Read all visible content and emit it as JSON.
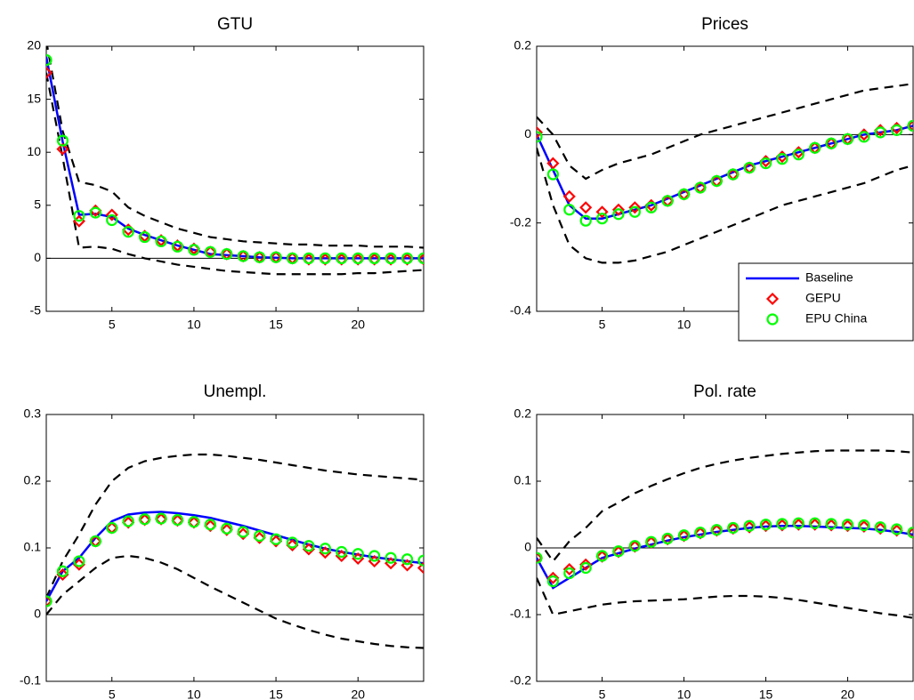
{
  "chart_data": [
    {
      "type": "line",
      "title": "GTU",
      "x": [
        1,
        2,
        3,
        4,
        5,
        6,
        7,
        8,
        9,
        10,
        11,
        12,
        13,
        14,
        15,
        16,
        17,
        18,
        19,
        20,
        21,
        22,
        23,
        24
      ],
      "xlim": [
        1,
        24
      ],
      "xticks": [
        5,
        10,
        15,
        20
      ],
      "ylim": [
        -5,
        20
      ],
      "yticks": [
        -5,
        0,
        5,
        10,
        15,
        20
      ],
      "series": [
        {
          "color": "#000000",
          "line": "dashed",
          "values": [
            20.5,
            12,
            7.2,
            6.9,
            6.3,
            4.8,
            4.0,
            3.4,
            2.8,
            2.4,
            2.0,
            1.8,
            1.6,
            1.5,
            1.4,
            1.3,
            1.3,
            1.2,
            1.2,
            1.2,
            1.1,
            1.1,
            1.1,
            1.0
          ]
        },
        {
          "color": "#000000",
          "line": "dashed",
          "values": [
            17.5,
            9.5,
            1.0,
            1.1,
            0.9,
            0.4,
            0,
            -0.3,
            -0.6,
            -0.8,
            -1.0,
            -1.2,
            -1.3,
            -1.4,
            -1.5,
            -1.5,
            -1.5,
            -1.5,
            -1.5,
            -1.4,
            -1.4,
            -1.3,
            -1.2,
            -1.1
          ]
        },
        {
          "name": "Baseline",
          "color": "#0000ff",
          "line": "solid",
          "values": [
            19,
            11,
            4.1,
            4.2,
            3.9,
            2.8,
            2.2,
            1.7,
            1.2,
            0.8,
            0.4,
            0.3,
            0.2,
            0.1,
            0.05,
            0,
            0,
            0,
            0,
            0,
            0,
            0,
            0,
            0
          ]
        },
        {
          "name": "GEPU",
          "color": "#ff0000",
          "marker": "diamond",
          "values": [
            17.5,
            10.3,
            3.5,
            4.5,
            4.1,
            2.7,
            2.1,
            1.7,
            1.2,
            0.9,
            0.6,
            0.4,
            0.2,
            0.1,
            0.1,
            0,
            -0.1,
            -0.1,
            -0.1,
            -0.1,
            -0.1,
            -0.1,
            -0.1,
            -0.1
          ]
        },
        {
          "name": "EPU China",
          "color": "#00ff00",
          "marker": "circle",
          "values": [
            18.7,
            11.1,
            4.0,
            4.3,
            3.6,
            2.5,
            2.0,
            1.6,
            1.1,
            0.8,
            0.6,
            0.4,
            0.2,
            0.1,
            0.1,
            0,
            0,
            0,
            0,
            0,
            0,
            0,
            0,
            0
          ]
        }
      ]
    },
    {
      "type": "line",
      "title": "Prices",
      "legend": "lower right",
      "x": [
        1,
        2,
        3,
        4,
        5,
        6,
        7,
        8,
        9,
        10,
        11,
        12,
        13,
        14,
        15,
        16,
        17,
        18,
        19,
        20,
        21,
        22,
        23,
        24
      ],
      "xlim": [
        1,
        24
      ],
      "xticks": [
        5,
        10,
        15,
        20
      ],
      "ylim": [
        -0.4,
        0.2
      ],
      "yticks": [
        -0.4,
        -0.2,
        0,
        0.2
      ],
      "series": [
        {
          "color": "#000000",
          "line": "dashed",
          "values": [
            0.04,
            0.0,
            -0.07,
            -0.1,
            -0.08,
            -0.065,
            -0.055,
            -0.045,
            -0.03,
            -0.015,
            0,
            0.01,
            0.02,
            0.03,
            0.04,
            0.05,
            0.06,
            0.07,
            0.08,
            0.09,
            0.1,
            0.105,
            0.11,
            0.115
          ]
        },
        {
          "color": "#000000",
          "line": "dashed",
          "values": [
            -0.03,
            -0.16,
            -0.25,
            -0.28,
            -0.29,
            -0.29,
            -0.285,
            -0.275,
            -0.265,
            -0.25,
            -0.235,
            -0.22,
            -0.205,
            -0.19,
            -0.175,
            -0.16,
            -0.15,
            -0.14,
            -0.13,
            -0.12,
            -0.11,
            -0.095,
            -0.08,
            -0.07
          ]
        },
        {
          "name": "Baseline",
          "color": "#0000ff",
          "line": "solid",
          "values": [
            0,
            -0.08,
            -0.16,
            -0.19,
            -0.19,
            -0.18,
            -0.17,
            -0.16,
            -0.145,
            -0.13,
            -0.115,
            -0.1,
            -0.085,
            -0.07,
            -0.06,
            -0.05,
            -0.04,
            -0.03,
            -0.02,
            -0.01,
            0,
            0.005,
            0.01,
            0.02
          ]
        },
        {
          "name": "GEPU",
          "color": "#ff0000",
          "marker": "diamond",
          "values": [
            0.005,
            -0.065,
            -0.14,
            -0.165,
            -0.175,
            -0.17,
            -0.165,
            -0.16,
            -0.15,
            -0.135,
            -0.12,
            -0.105,
            -0.09,
            -0.075,
            -0.06,
            -0.05,
            -0.04,
            -0.03,
            -0.02,
            -0.01,
            0,
            0.01,
            0.015,
            0.02
          ]
        },
        {
          "name": "EPU China",
          "color": "#00ff00",
          "marker": "circle",
          "values": [
            -0.005,
            -0.09,
            -0.17,
            -0.195,
            -0.19,
            -0.18,
            -0.175,
            -0.165,
            -0.15,
            -0.135,
            -0.12,
            -0.105,
            -0.09,
            -0.075,
            -0.065,
            -0.055,
            -0.045,
            -0.03,
            -0.02,
            -0.01,
            -0.005,
            0.005,
            0.01,
            0.02
          ]
        }
      ]
    },
    {
      "type": "line",
      "title": "Unempl.",
      "x": [
        1,
        2,
        3,
        4,
        5,
        6,
        7,
        8,
        9,
        10,
        11,
        12,
        13,
        14,
        15,
        16,
        17,
        18,
        19,
        20,
        21,
        22,
        23,
        24
      ],
      "xlim": [
        1,
        24
      ],
      "xticks": [
        5,
        10,
        15,
        20
      ],
      "ylim": [
        -0.1,
        0.3
      ],
      "yticks": [
        -0.1,
        0,
        0.1,
        0.2,
        0.3
      ],
      "series": [
        {
          "color": "#000000",
          "line": "dashed",
          "values": [
            0.025,
            0.08,
            0.12,
            0.165,
            0.2,
            0.22,
            0.23,
            0.235,
            0.238,
            0.24,
            0.24,
            0.238,
            0.235,
            0.232,
            0.228,
            0.224,
            0.22,
            0.216,
            0.213,
            0.21,
            0.208,
            0.206,
            0.204,
            0.202
          ]
        },
        {
          "color": "#000000",
          "line": "dashed",
          "values": [
            0.0,
            0.03,
            0.05,
            0.07,
            0.085,
            0.088,
            0.085,
            0.078,
            0.068,
            0.055,
            0.042,
            0.03,
            0.018,
            0.006,
            -0.006,
            -0.015,
            -0.023,
            -0.03,
            -0.036,
            -0.04,
            -0.044,
            -0.047,
            -0.049,
            -0.05
          ]
        },
        {
          "name": "Baseline",
          "color": "#0000ff",
          "line": "solid",
          "values": [
            0.02,
            0.065,
            0.085,
            0.115,
            0.14,
            0.15,
            0.153,
            0.154,
            0.152,
            0.149,
            0.145,
            0.139,
            0.133,
            0.126,
            0.119,
            0.112,
            0.105,
            0.099,
            0.094,
            0.09,
            0.086,
            0.083,
            0.08,
            0.077
          ]
        },
        {
          "name": "GEPU",
          "color": "#ff0000",
          "marker": "diamond",
          "values": [
            0.02,
            0.06,
            0.075,
            0.11,
            0.13,
            0.138,
            0.142,
            0.143,
            0.141,
            0.138,
            0.133,
            0.127,
            0.121,
            0.115,
            0.11,
            0.104,
            0.098,
            0.093,
            0.088,
            0.084,
            0.08,
            0.077,
            0.074,
            0.07
          ]
        },
        {
          "name": "EPU China",
          "color": "#00ff00",
          "marker": "circle",
          "values": [
            0.02,
            0.065,
            0.08,
            0.11,
            0.13,
            0.14,
            0.143,
            0.144,
            0.142,
            0.139,
            0.135,
            0.129,
            0.124,
            0.118,
            0.113,
            0.108,
            0.103,
            0.099,
            0.094,
            0.091,
            0.088,
            0.085,
            0.083,
            0.081
          ]
        }
      ]
    },
    {
      "type": "line",
      "title": "Pol. rate",
      "x": [
        1,
        2,
        3,
        4,
        5,
        6,
        7,
        8,
        9,
        10,
        11,
        12,
        13,
        14,
        15,
        16,
        17,
        18,
        19,
        20,
        21,
        22,
        23,
        24
      ],
      "xlim": [
        1,
        24
      ],
      "xticks": [
        5,
        10,
        15,
        20
      ],
      "ylim": [
        -0.2,
        0.2
      ],
      "yticks": [
        -0.2,
        -0.1,
        0,
        0.1,
        0.2
      ],
      "series": [
        {
          "color": "#000000",
          "line": "dashed",
          "values": [
            0.015,
            -0.02,
            0.01,
            0.03,
            0.055,
            0.068,
            0.082,
            0.093,
            0.103,
            0.112,
            0.12,
            0.126,
            0.131,
            0.135,
            0.138,
            0.141,
            0.143,
            0.145,
            0.146,
            0.146,
            0.146,
            0.146,
            0.145,
            0.143
          ]
        },
        {
          "color": "#000000",
          "line": "dashed",
          "values": [
            -0.045,
            -0.1,
            -0.095,
            -0.09,
            -0.085,
            -0.082,
            -0.08,
            -0.079,
            -0.078,
            -0.077,
            -0.075,
            -0.073,
            -0.072,
            -0.072,
            -0.073,
            -0.075,
            -0.078,
            -0.082,
            -0.086,
            -0.09,
            -0.094,
            -0.098,
            -0.101,
            -0.105
          ]
        },
        {
          "name": "Baseline",
          "color": "#0000ff",
          "line": "solid",
          "values": [
            -0.015,
            -0.06,
            -0.045,
            -0.03,
            -0.015,
            -0.008,
            -0.001,
            0.005,
            0.011,
            0.016,
            0.02,
            0.024,
            0.027,
            0.03,
            0.032,
            0.033,
            0.033,
            0.032,
            0.031,
            0.03,
            0.029,
            0.027,
            0.024,
            0.02
          ]
        },
        {
          "name": "GEPU",
          "color": "#ff0000",
          "marker": "diamond",
          "values": [
            -0.015,
            -0.045,
            -0.032,
            -0.025,
            -0.013,
            -0.006,
            0.002,
            0.008,
            0.013,
            0.018,
            0.022,
            0.026,
            0.029,
            0.031,
            0.033,
            0.034,
            0.035,
            0.035,
            0.034,
            0.033,
            0.032,
            0.029,
            0.026,
            0.022
          ]
        },
        {
          "name": "EPU China",
          "color": "#00ff00",
          "marker": "circle",
          "values": [
            -0.015,
            -0.05,
            -0.038,
            -0.03,
            -0.012,
            -0.005,
            0.003,
            0.009,
            0.014,
            0.019,
            0.023,
            0.027,
            0.03,
            0.033,
            0.035,
            0.036,
            0.037,
            0.037,
            0.036,
            0.035,
            0.034,
            0.031,
            0.028,
            0.023
          ]
        }
      ]
    }
  ]
}
